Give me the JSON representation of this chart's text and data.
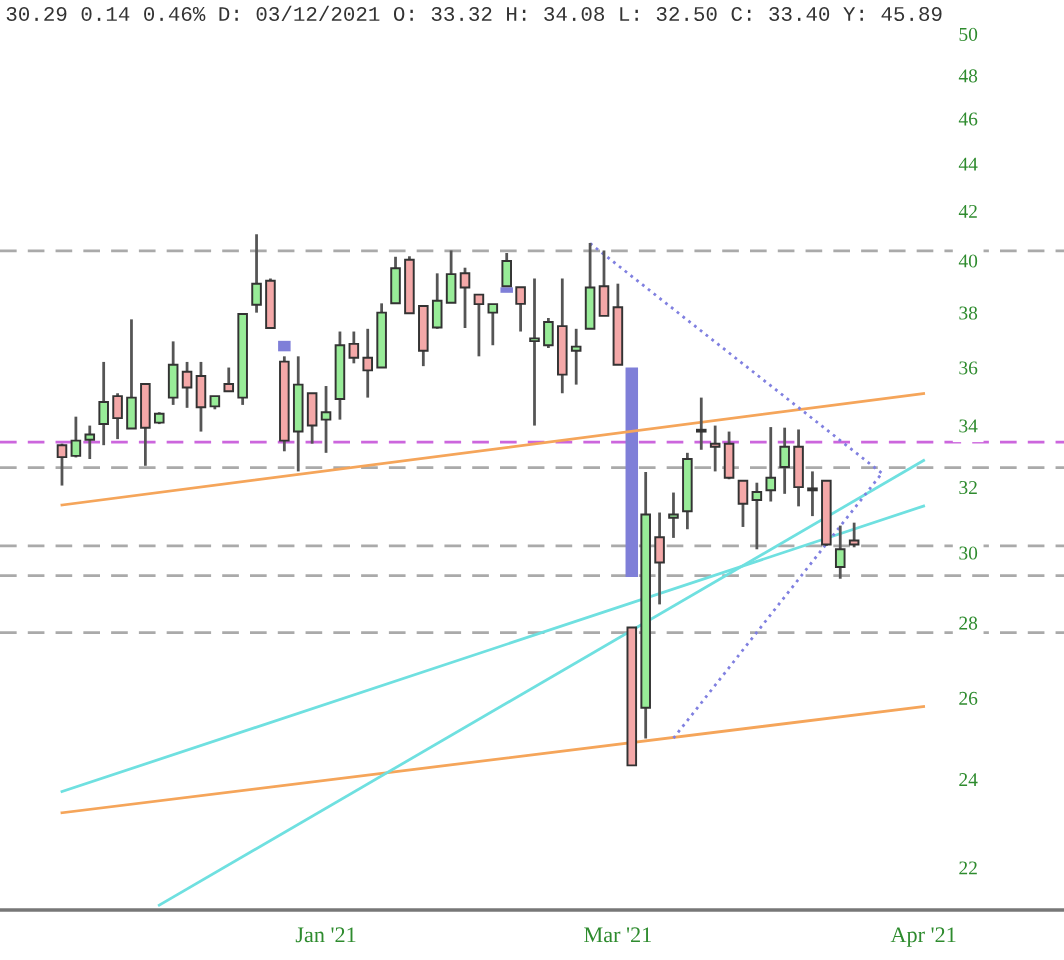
{
  "chart_data": {
    "type": "candlestick",
    "title": "30.29 0.14 0.46% D: 03/12/2021 O: 33.32 H: 34.08 L: 32.50 C: 33.40 Y: 45.89",
    "log": "y",
    "ylim": [
      21.1,
      50
    ],
    "yticks": [
      22,
      24,
      26,
      28,
      30,
      32,
      34,
      36,
      38,
      40,
      42,
      44,
      46,
      48,
      50
    ],
    "categories": [
      null,
      null,
      null,
      null,
      null,
      null,
      null,
      null,
      null,
      null,
      null,
      null,
      null,
      null,
      null,
      null,
      null,
      null,
      null,
      "Jan '21",
      null,
      null,
      null,
      null,
      null,
      null,
      null,
      null,
      null,
      null,
      null,
      null,
      null,
      null,
      null,
      null,
      null,
      null,
      null,
      null,
      "Mar '21",
      null,
      null,
      null,
      null,
      null,
      null,
      null,
      null,
      null,
      null,
      null,
      null,
      null,
      null,
      null,
      null,
      null,
      null,
      null,
      null,
      null,
      "Apr '21"
    ],
    "grid": false,
    "legend": false,
    "series": [
      {
        "colors": [
          "#f4a8a8",
          "#98ec98",
          "#98ec98",
          "#98ec98",
          "#f4a8a8",
          "#98ec98",
          "#f4a8a8",
          "#98ec98",
          "#98ec98",
          "#f4a8a8",
          "#f4a8a8",
          "#98ec98",
          "#f4a8a8",
          "#98ec98",
          "#98ec98",
          "#f4a8a8",
          "#f4a8a8",
          "#98ec98",
          "#f4a8a8",
          "#98ec98",
          "#98ec98",
          "#f4a8a8",
          "#f4a8a8",
          "#98ec98",
          "#98ec98",
          "#f4a8a8",
          "#f4a8a8",
          "#98ec98",
          "#98ec98",
          "#f4a8a8",
          "#f4a8a8",
          "#98ec98",
          "#98ec98",
          "#f4a8a8",
          "#98ec98",
          "#98ec98",
          "#f4a8a8",
          "#98ec98",
          "#98ec98",
          "#f4a8a8",
          "#f4a8a8",
          "#f4a8a8",
          "#98ec98",
          "#f4a8a8",
          "#98ec98",
          "#98ec98",
          "#98ec98",
          "#f4a8a8",
          "#f4a8a8",
          "#f4a8a8",
          "#98ec98",
          "#98ec98",
          "#98ec98",
          "#f4a8a8",
          "#f4a8a8",
          "#f4a8a8",
          "#98ec98",
          "#f4a8a8",
          null,
          null,
          null,
          null,
          null
        ],
        "ohlc": [
          [
            33.35,
            33.4,
            32.05,
            32.96
          ],
          [
            33.0,
            34.3,
            32.95,
            33.5
          ],
          [
            33.53,
            34.0,
            32.9,
            33.7
          ],
          [
            34.05,
            36.2,
            33.35,
            34.8
          ],
          [
            35.0,
            35.1,
            33.55,
            34.25
          ],
          [
            33.9,
            37.75,
            33.9,
            34.95
          ],
          [
            35.42,
            35.45,
            32.68,
            33.93
          ],
          [
            34.1,
            34.45,
            34.05,
            34.4
          ],
          [
            34.95,
            36.94,
            34.7,
            36.1
          ],
          [
            35.85,
            36.2,
            34.6,
            35.3
          ],
          [
            35.7,
            36.2,
            33.8,
            34.62
          ],
          [
            34.65,
            35.0,
            34.55,
            35.0
          ],
          [
            35.42,
            36.0,
            35.17,
            35.17
          ],
          [
            34.95,
            37.95,
            34.7,
            37.95
          ],
          [
            38.3,
            41.05,
            38.0,
            39.1
          ],
          [
            39.21,
            39.3,
            37.43,
            37.43
          ],
          [
            36.21,
            36.4,
            33.15,
            33.5
          ],
          [
            33.8,
            36.4,
            32.5,
            35.4
          ],
          [
            35.1,
            35.1,
            33.4,
            34.0
          ],
          [
            34.2,
            35.35,
            33.1,
            34.45
          ],
          [
            34.9,
            37.3,
            34.2,
            36.8
          ],
          [
            36.85,
            37.3,
            36.15,
            36.35
          ],
          [
            36.35,
            37.4,
            34.95,
            35.9
          ],
          [
            36.0,
            38.35,
            36.0,
            38.0
          ],
          [
            38.35,
            40.15,
            38.35,
            39.7
          ],
          [
            40.03,
            40.17,
            37.98,
            37.98
          ],
          [
            38.25,
            38.25,
            36.05,
            36.6
          ],
          [
            37.45,
            39.5,
            37.4,
            38.45
          ],
          [
            38.37,
            40.4,
            38.37,
            39.47
          ],
          [
            39.5,
            39.72,
            37.43,
            38.95
          ],
          [
            38.68,
            38.7,
            36.4,
            38.32
          ],
          [
            38.0,
            38.32,
            36.8,
            38.32
          ],
          [
            39.0,
            40.3,
            39.0,
            39.98
          ],
          [
            38.96,
            38.96,
            37.3,
            38.33
          ],
          [
            36.95,
            39.3,
            34.0,
            37.05
          ],
          [
            36.8,
            37.8,
            36.7,
            37.65
          ],
          [
            37.5,
            39.3,
            35.1,
            35.75
          ],
          [
            36.6,
            37.4,
            35.4,
            36.75
          ],
          [
            37.4,
            40.7,
            37.4,
            38.95
          ],
          [
            39.0,
            40.4,
            37.88,
            37.88
          ],
          [
            38.2,
            39.1,
            36.1,
            36.1
          ],
          [
            27.87,
            27.87,
            24.33,
            24.33
          ],
          [
            25.75,
            32.48,
            24.98,
            31.15
          ],
          [
            30.46,
            31.21,
            28.51,
            29.71
          ],
          [
            31.05,
            31.83,
            30.44,
            31.15
          ],
          [
            31.25,
            33.1,
            30.7,
            32.9
          ],
          [
            33.8,
            34.95,
            33.2,
            33.85
          ],
          [
            33.4,
            34.0,
            32.5,
            33.3
          ],
          [
            33.4,
            33.8,
            32.25,
            32.3
          ],
          [
            32.2,
            32.2,
            30.77,
            31.48
          ],
          [
            31.6,
            32.14,
            30.1,
            31.85
          ],
          [
            31.9,
            33.95,
            31.55,
            32.3
          ],
          [
            32.64,
            33.93,
            31.79,
            33.3
          ],
          [
            33.3,
            33.87,
            31.4,
            32.0
          ],
          [
            31.95,
            32.5,
            31.1,
            31.9
          ],
          [
            32.2,
            32.2,
            30.2,
            30.24
          ],
          [
            29.58,
            30.81,
            29.24,
            30.1
          ],
          [
            30.36,
            30.9,
            30.16,
            30.24
          ],
          null,
          null,
          null,
          null,
          null
        ]
      },
      {
        "type": "bar",
        "color": "#7f7fd8",
        "base": [
          null,
          null,
          null,
          null,
          null,
          null,
          null,
          null,
          null,
          null,
          null,
          null,
          null,
          null,
          null,
          null,
          36.58,
          null,
          null,
          null,
          null,
          null,
          null,
          null,
          null,
          null,
          null,
          null,
          null,
          null,
          null,
          null,
          38.75,
          null,
          null,
          null,
          null,
          null,
          null,
          null,
          null,
          29.29,
          null,
          null,
          null,
          null,
          null,
          null,
          null,
          null,
          null,
          null,
          null,
          null,
          null,
          null,
          null,
          null,
          null,
          null,
          null,
          null,
          null
        ],
        "values": [
          null,
          null,
          null,
          null,
          null,
          null,
          null,
          null,
          null,
          null,
          null,
          null,
          null,
          null,
          null,
          null,
          0.38,
          null,
          null,
          null,
          null,
          null,
          null,
          null,
          null,
          null,
          null,
          null,
          null,
          null,
          null,
          null,
          0.21,
          null,
          null,
          null,
          null,
          null,
          null,
          null,
          null,
          6.71,
          null,
          null,
          null,
          null,
          null,
          null,
          null,
          null,
          null,
          null,
          null,
          null,
          null,
          null,
          null,
          null,
          null,
          null,
          null,
          null,
          null
        ]
      },
      {
        "type": "line",
        "color": "#f5a55a",
        "line_style": "solid",
        "values": [
          31.44,
          null,
          null,
          null,
          null,
          null,
          null,
          null,
          null,
          null,
          null,
          null,
          null,
          null,
          null,
          null,
          null,
          null,
          null,
          null,
          null,
          null,
          null,
          null,
          null,
          null,
          null,
          null,
          null,
          null,
          null,
          null,
          null,
          null,
          null,
          null,
          null,
          null,
          null,
          null,
          null,
          null,
          null,
          null,
          null,
          null,
          null,
          null,
          null,
          null,
          null,
          null,
          null,
          null,
          null,
          null,
          null,
          null,
          null,
          null,
          null,
          null,
          35.09
        ]
      },
      {
        "type": "line",
        "color": "#f5a55a",
        "line_style": "solid",
        "values": [
          23.22,
          null,
          null,
          null,
          null,
          null,
          null,
          null,
          null,
          null,
          null,
          null,
          null,
          null,
          null,
          null,
          null,
          null,
          null,
          null,
          null,
          null,
          null,
          null,
          null,
          null,
          null,
          null,
          null,
          null,
          null,
          null,
          null,
          null,
          null,
          null,
          null,
          null,
          null,
          null,
          null,
          null,
          null,
          null,
          null,
          null,
          null,
          null,
          null,
          null,
          null,
          null,
          null,
          null,
          null,
          null,
          null,
          null,
          null,
          null,
          null,
          null,
          25.78
        ]
      },
      {
        "type": "line",
        "color": "#6fe0e0",
        "line_style": "solid",
        "values": [
          null,
          null,
          null,
          null,
          null,
          null,
          null,
          21.2,
          null,
          null,
          null,
          null,
          null,
          null,
          null,
          null,
          null,
          null,
          null,
          null,
          null,
          null,
          null,
          null,
          null,
          null,
          null,
          null,
          null,
          null,
          null,
          null,
          null,
          null,
          null,
          null,
          null,
          null,
          null,
          null,
          null,
          null,
          null,
          null,
          null,
          null,
          null,
          null,
          null,
          null,
          null,
          null,
          null,
          null,
          null,
          null,
          null,
          null,
          null,
          null,
          null,
          null,
          32.85
        ]
      },
      {
        "type": "line",
        "color": "#6fe0e0",
        "line_style": "solid",
        "values": [
          23.71,
          null,
          null,
          null,
          null,
          null,
          null,
          null,
          null,
          null,
          null,
          null,
          null,
          null,
          null,
          null,
          null,
          null,
          null,
          null,
          null,
          null,
          null,
          null,
          null,
          null,
          null,
          null,
          null,
          null,
          null,
          null,
          null,
          null,
          null,
          null,
          null,
          null,
          null,
          null,
          null,
          null,
          null,
          null,
          null,
          null,
          null,
          null,
          null,
          null,
          null,
          null,
          null,
          null,
          null,
          null,
          null,
          null,
          null,
          null,
          null,
          null,
          31.41
        ]
      },
      {
        "type": "line",
        "color": "#8080e0",
        "line_style": "dotted",
        "values": [
          null,
          null,
          null,
          null,
          null,
          null,
          null,
          null,
          null,
          null,
          null,
          null,
          null,
          null,
          null,
          null,
          null,
          null,
          null,
          null,
          null,
          null,
          null,
          null,
          null,
          null,
          null,
          null,
          null,
          null,
          null,
          null,
          null,
          null,
          null,
          null,
          null,
          null,
          40.68,
          null,
          null,
          null,
          null,
          null,
          null,
          null,
          null,
          null,
          null,
          null,
          null,
          null,
          null,
          null,
          null,
          null,
          null,
          null,
          null,
          32.44,
          null,
          null,
          null
        ]
      },
      {
        "type": "line",
        "color": "#8080e0",
        "line_style": "dotted",
        "values": [
          null,
          null,
          null,
          null,
          null,
          null,
          null,
          null,
          null,
          null,
          null,
          null,
          null,
          null,
          null,
          null,
          null,
          null,
          null,
          null,
          null,
          null,
          null,
          null,
          null,
          null,
          null,
          null,
          null,
          null,
          null,
          null,
          null,
          null,
          null,
          null,
          null,
          null,
          null,
          null,
          null,
          null,
          null,
          null,
          24.99,
          null,
          null,
          null,
          null,
          null,
          null,
          null,
          null,
          null,
          null,
          null,
          null,
          null,
          null,
          32.44,
          null,
          null,
          null
        ]
      }
    ],
    "ref_lines": [
      {
        "axis": "y",
        "value": 40.38,
        "color": "#aaaaaa",
        "line_style": "dashed"
      },
      {
        "axis": "y",
        "value": 33.45,
        "color": "#cc66dd",
        "line_style": "dashed"
      },
      {
        "axis": "y",
        "value": 32.62,
        "color": "#aaaaaa",
        "line_style": "dashed"
      },
      {
        "axis": "y",
        "value": 30.2,
        "color": "#aaaaaa",
        "line_style": "dashed"
      },
      {
        "axis": "y",
        "value": 29.33,
        "color": "#aaaaaa",
        "line_style": "dashed"
      },
      {
        "axis": "y",
        "value": 27.73,
        "color": "#aaaaaa",
        "line_style": "dashed"
      }
    ]
  }
}
